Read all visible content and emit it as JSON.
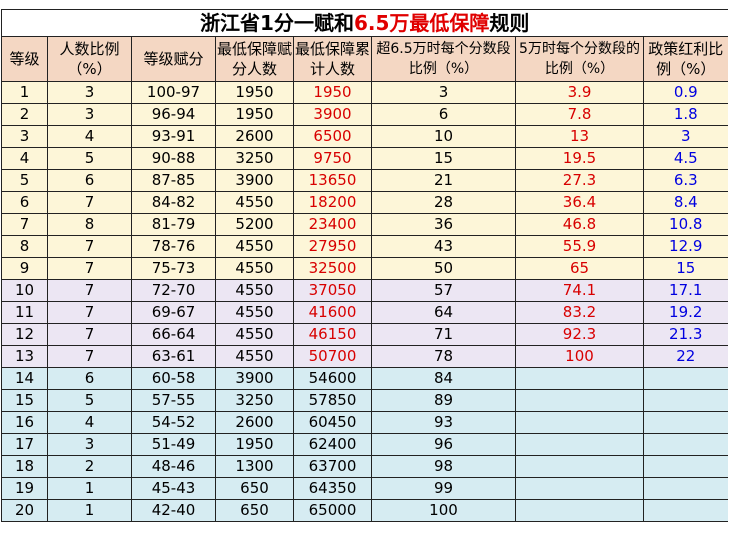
{
  "title": {
    "main": "浙江省1分一赋和",
    "highlight": "6.5万最低保障",
    "suffix": "规则"
  },
  "headers": [
    "等级",
    "人数比例（%）",
    "等级赋分",
    "最低保障赋分人数",
    "最低保障累计人数",
    "超6.5万时每个分数段比例（%）",
    "5万时每个分数段的比例（%）",
    "政策红利比例（%）"
  ],
  "rows": [
    [
      "1",
      "3",
      "100-97",
      "1950",
      "1950",
      "3",
      "3.9",
      "0.9"
    ],
    [
      "2",
      "3",
      "96-94",
      "1950",
      "3900",
      "6",
      "7.8",
      "1.8"
    ],
    [
      "3",
      "4",
      "93-91",
      "2600",
      "6500",
      "10",
      "13",
      "3"
    ],
    [
      "4",
      "5",
      "90-88",
      "3250",
      "9750",
      "15",
      "19.5",
      "4.5"
    ],
    [
      "5",
      "6",
      "87-85",
      "3900",
      "13650",
      "21",
      "27.3",
      "6.3"
    ],
    [
      "6",
      "7",
      "84-82",
      "4550",
      "18200",
      "28",
      "36.4",
      "8.4"
    ],
    [
      "7",
      "8",
      "81-79",
      "5200",
      "23400",
      "36",
      "46.8",
      "10.8"
    ],
    [
      "8",
      "7",
      "78-76",
      "4550",
      "27950",
      "43",
      "55.9",
      "12.9"
    ],
    [
      "9",
      "7",
      "75-73",
      "4550",
      "32500",
      "50",
      "65",
      "15"
    ],
    [
      "10",
      "7",
      "72-70",
      "4550",
      "37050",
      "57",
      "74.1",
      "17.1"
    ],
    [
      "11",
      "7",
      "69-67",
      "4550",
      "41600",
      "64",
      "83.2",
      "19.2"
    ],
    [
      "12",
      "7",
      "66-64",
      "4550",
      "46150",
      "71",
      "92.3",
      "21.3"
    ],
    [
      "13",
      "7",
      "63-61",
      "4550",
      "50700",
      "78",
      "100",
      "22"
    ],
    [
      "14",
      "6",
      "60-58",
      "3900",
      "54600",
      "84",
      "",
      ""
    ],
    [
      "15",
      "5",
      "57-55",
      "3250",
      "57850",
      "89",
      "",
      ""
    ],
    [
      "16",
      "4",
      "54-52",
      "2600",
      "60450",
      "93",
      "",
      ""
    ],
    [
      "17",
      "3",
      "51-49",
      "1950",
      "62400",
      "96",
      "",
      ""
    ],
    [
      "18",
      "2",
      "48-46",
      "1300",
      "63700",
      "98",
      "",
      ""
    ],
    [
      "19",
      "1",
      "45-43",
      "650",
      "64350",
      "99",
      "",
      ""
    ],
    [
      "20",
      "1",
      "42-40",
      "650",
      "65000",
      "100",
      "",
      ""
    ]
  ],
  "colors": {
    "red": "#d80000",
    "blue": "#0000e0",
    "header_bg": "#f4d7c3",
    "band_yellow": "#fdf6d8",
    "band_purple": "#ece6f3",
    "band_cyan": "#d6ecf2"
  }
}
